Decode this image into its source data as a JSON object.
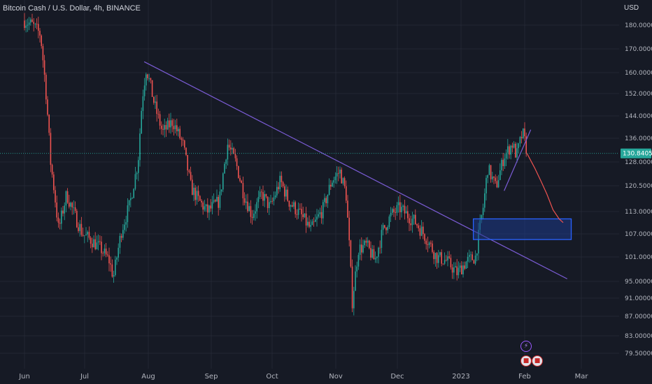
{
  "header": {
    "symbol_line": "Bitcoin Cash / U.S. Dollar, 4h, BINANCE",
    "currency": "USD"
  },
  "icons": {
    "event_flash": "lightning-icon",
    "event_flags": "us-flag-icon"
  },
  "colors": {
    "background": "#161a25",
    "grid": "#232734",
    "candle_up": "#26a69a",
    "candle_down": "#ef5350",
    "trendline": "#7b5cd6",
    "box_fill": "#1e3a8a",
    "box_border": "#2962ff",
    "projection": "#ef5350",
    "price_line": "#26a69a",
    "axis_text": "#b2b5be"
  },
  "chart_data": {
    "type": "candlestick",
    "title": "Bitcoin Cash / U.S. Dollar, 4h, BINANCE",
    "y_unit": "USD",
    "y_ticks": [
      "180.00000",
      "170.00000",
      "160.00000",
      "152.00000",
      "144.00000",
      "136.00000",
      "128.00000",
      "120.50000",
      "113.00000",
      "107.00000",
      "101.00000",
      "95.00000",
      "91.00000",
      "87.00000",
      "83.00000",
      "79.50000"
    ],
    "x_ticks": [
      "Jun",
      "Jul",
      "Aug",
      "Sep",
      "Oct",
      "Nov",
      "Dec",
      "2023",
      "Feb",
      "Mar"
    ],
    "last_price": "130.84053",
    "ylim": [
      77,
      190
    ],
    "log_scale": true,
    "grid": true,
    "path": [
      [
        "2022-06-01",
        182
      ],
      [
        "2022-06-05",
        180
      ],
      [
        "2022-06-09",
        176
      ],
      [
        "2022-06-12",
        150
      ],
      [
        "2022-06-14",
        128
      ],
      [
        "2022-06-18",
        108
      ],
      [
        "2022-06-22",
        118
      ],
      [
        "2022-06-26",
        112
      ],
      [
        "2022-06-30",
        107
      ],
      [
        "2022-07-05",
        105
      ],
      [
        "2022-07-09",
        103
      ],
      [
        "2022-07-13",
        100
      ],
      [
        "2022-07-15",
        96
      ],
      [
        "2022-07-19",
        108
      ],
      [
        "2022-07-23",
        115
      ],
      [
        "2022-07-27",
        128
      ],
      [
        "2022-07-29",
        150
      ],
      [
        "2022-07-31",
        162
      ],
      [
        "2022-08-04",
        148
      ],
      [
        "2022-08-08",
        138
      ],
      [
        "2022-08-13",
        142
      ],
      [
        "2022-08-18",
        134
      ],
      [
        "2022-08-22",
        120
      ],
      [
        "2022-08-26",
        116
      ],
      [
        "2022-08-30",
        113
      ],
      [
        "2022-09-05",
        116
      ],
      [
        "2022-09-09",
        134
      ],
      [
        "2022-09-13",
        128
      ],
      [
        "2022-09-17",
        118
      ],
      [
        "2022-09-21",
        112
      ],
      [
        "2022-09-26",
        118
      ],
      [
        "2022-09-30",
        114
      ],
      [
        "2022-10-05",
        122
      ],
      [
        "2022-10-09",
        116
      ],
      [
        "2022-10-15",
        112
      ],
      [
        "2022-10-20",
        108
      ],
      [
        "2022-10-26",
        114
      ],
      [
        "2022-10-30",
        122
      ],
      [
        "2022-11-03",
        125
      ],
      [
        "2022-11-06",
        118
      ],
      [
        "2022-11-08",
        100
      ],
      [
        "2022-11-09",
        90
      ],
      [
        "2022-11-12",
        103
      ],
      [
        "2022-11-16",
        104
      ],
      [
        "2022-11-20",
        100
      ],
      [
        "2022-11-24",
        108
      ],
      [
        "2022-11-28",
        112
      ],
      [
        "2022-12-02",
        114
      ],
      [
        "2022-12-06",
        112
      ],
      [
        "2022-12-10",
        110
      ],
      [
        "2022-12-15",
        106
      ],
      [
        "2022-12-20",
        101
      ],
      [
        "2022-12-25",
        100
      ],
      [
        "2022-12-30",
        97
      ],
      [
        "2023-01-04",
        100
      ],
      [
        "2023-01-08",
        101
      ],
      [
        "2023-01-10",
        108
      ],
      [
        "2023-01-12",
        115
      ],
      [
        "2023-01-14",
        126
      ],
      [
        "2023-01-18",
        120
      ],
      [
        "2023-01-22",
        130
      ],
      [
        "2023-01-26",
        134
      ],
      [
        "2023-01-28",
        130
      ],
      [
        "2023-01-31",
        138
      ],
      [
        "2023-02-02",
        132
      ]
    ],
    "trendline": [
      [
        "2022-07-30",
        164.5
      ],
      [
        "2023-02-22",
        95.6
      ]
    ],
    "zone": {
      "x": [
        "2023-01-07",
        "2023-02-24"
      ],
      "y": [
        105.5,
        111.0
      ]
    },
    "rising_wedge_line": [
      [
        "2023-01-22",
        119.0
      ],
      [
        "2023-02-04",
        139.0
      ]
    ],
    "projection": [
      [
        "2023-02-02",
        131.0
      ],
      [
        "2023-02-06",
        126.0
      ],
      [
        "2023-02-09",
        122.0
      ],
      [
        "2023-02-12",
        118.0
      ],
      [
        "2023-02-15",
        113.5
      ],
      [
        "2023-02-18",
        111.0
      ],
      [
        "2023-02-20",
        110.0
      ]
    ]
  }
}
